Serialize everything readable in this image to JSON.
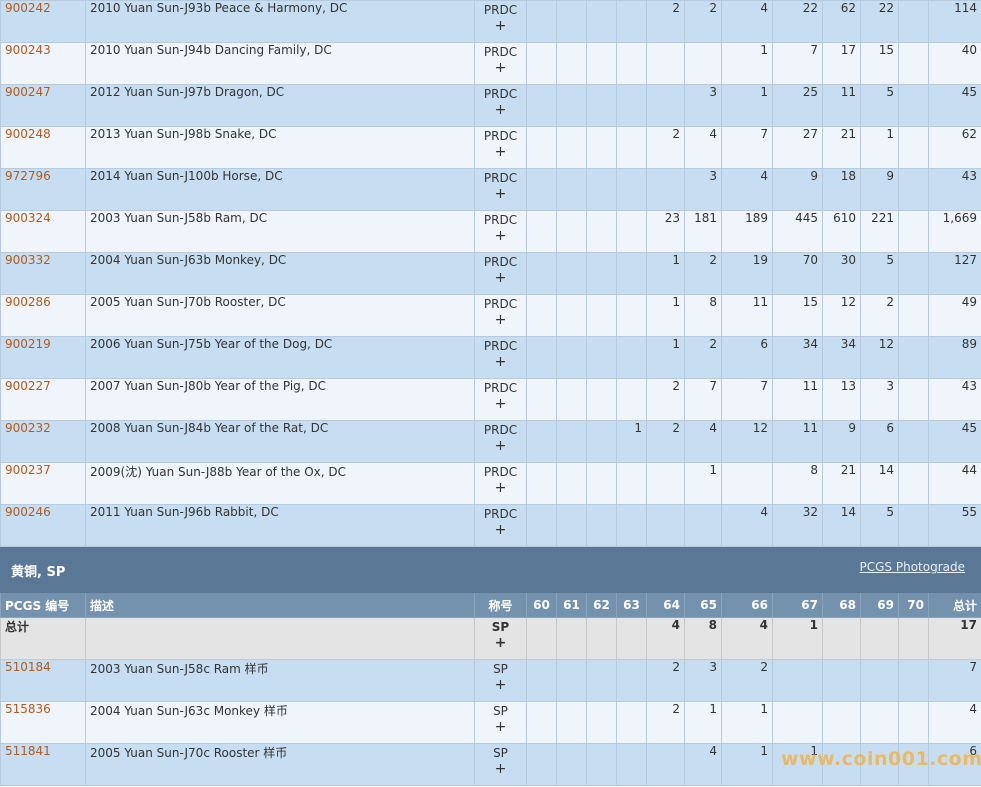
{
  "dc_rows": [
    {
      "pcgs": "900242",
      "desc": "2010 Yuan Sun-J93b Peace & Harmony, DC",
      "des": "PRDC",
      "g": [
        "",
        "",
        "",
        "",
        "2",
        "2",
        "4",
        "22",
        "62",
        "22",
        ""
      ],
      "total": "114"
    },
    {
      "pcgs": "900243",
      "desc": "2010 Yuan Sun-J94b Dancing Family, DC",
      "des": "PRDC",
      "g": [
        "",
        "",
        "",
        "",
        "",
        "",
        "1",
        "7",
        "17",
        "15",
        ""
      ],
      "total": "40"
    },
    {
      "pcgs": "900247",
      "desc": "2012 Yuan Sun-J97b Dragon, DC",
      "des": "PRDC",
      "g": [
        "",
        "",
        "",
        "",
        "",
        "3",
        "1",
        "25",
        "11",
        "5",
        ""
      ],
      "total": "45"
    },
    {
      "pcgs": "900248",
      "desc": "2013 Yuan Sun-J98b Snake, DC",
      "des": "PRDC",
      "g": [
        "",
        "",
        "",
        "",
        "2",
        "4",
        "7",
        "27",
        "21",
        "1",
        ""
      ],
      "total": "62"
    },
    {
      "pcgs": "972796",
      "desc": "2014 Yuan Sun-J100b Horse, DC",
      "des": "PRDC",
      "g": [
        "",
        "",
        "",
        "",
        "",
        "3",
        "4",
        "9",
        "18",
        "9",
        ""
      ],
      "total": "43"
    },
    {
      "pcgs": "900324",
      "desc": "2003 Yuan Sun-J58b Ram, DC",
      "des": "PRDC",
      "g": [
        "",
        "",
        "",
        "",
        "23",
        "181",
        "189",
        "445",
        "610",
        "221",
        ""
      ],
      "total": "1,669"
    },
    {
      "pcgs": "900332",
      "desc": "2004 Yuan Sun-J63b Monkey, DC",
      "des": "PRDC",
      "g": [
        "",
        "",
        "",
        "",
        "1",
        "2",
        "19",
        "70",
        "30",
        "5",
        ""
      ],
      "total": "127"
    },
    {
      "pcgs": "900286",
      "desc": "2005 Yuan Sun-J70b Rooster, DC",
      "des": "PRDC",
      "g": [
        "",
        "",
        "",
        "",
        "1",
        "8",
        "11",
        "15",
        "12",
        "2",
        ""
      ],
      "total": "49"
    },
    {
      "pcgs": "900219",
      "desc": "2006 Yuan Sun-J75b Year of the Dog, DC",
      "des": "PRDC",
      "g": [
        "",
        "",
        "",
        "",
        "1",
        "2",
        "6",
        "34",
        "34",
        "12",
        ""
      ],
      "total": "89"
    },
    {
      "pcgs": "900227",
      "desc": "2007 Yuan Sun-J80b Year of the Pig, DC",
      "des": "PRDC",
      "g": [
        "",
        "",
        "",
        "",
        "2",
        "7",
        "7",
        "11",
        "13",
        "3",
        ""
      ],
      "total": "43"
    },
    {
      "pcgs": "900232",
      "desc": "2008 Yuan Sun-J84b Year of the Rat, DC",
      "des": "PRDC",
      "g": [
        "",
        "",
        "",
        "1",
        "2",
        "4",
        "12",
        "11",
        "9",
        "6",
        ""
      ],
      "total": "45"
    },
    {
      "pcgs": "900237",
      "desc": "2009(沈) Yuan Sun-J88b Year of the Ox, DC",
      "des": "PRDC",
      "g": [
        "",
        "",
        "",
        "",
        "",
        "1",
        "",
        "8",
        "21",
        "14",
        ""
      ],
      "total": "44"
    },
    {
      "pcgs": "900246",
      "desc": "2011 Yuan Sun-J96b Rabbit, DC",
      "des": "PRDC",
      "g": [
        "",
        "",
        "",
        "",
        "",
        "",
        "4",
        "32",
        "14",
        "5",
        ""
      ],
      "total": "55"
    }
  ],
  "section": {
    "title": "黄铜, SP",
    "photograde": "PCGS Photograde"
  },
  "header": {
    "pcgs": "PCGS 编号",
    "desc": "描述",
    "des": "称号",
    "grades": [
      "60",
      "61",
      "62",
      "63",
      "64",
      "65",
      "66",
      "67",
      "68",
      "69",
      "70"
    ],
    "total": "总计"
  },
  "total_row": {
    "label": "总计",
    "des": "SP",
    "g": [
      "",
      "",
      "",
      "",
      "4",
      "8",
      "4",
      "1",
      "",
      "",
      ""
    ],
    "total": "17"
  },
  "sp_rows": [
    {
      "pcgs": "510184",
      "desc": "2003 Yuan Sun-J58c Ram 样币",
      "des": "SP",
      "g": [
        "",
        "",
        "",
        "",
        "2",
        "3",
        "2",
        "",
        "",
        "",
        ""
      ],
      "total": "7"
    },
    {
      "pcgs": "515836",
      "desc": "2004 Yuan Sun-J63c Monkey 样币",
      "des": "SP",
      "g": [
        "",
        "",
        "",
        "",
        "2",
        "1",
        "1",
        "",
        "",
        "",
        ""
      ],
      "total": "4"
    },
    {
      "pcgs": "511841",
      "desc": "2005 Yuan Sun-J70c Rooster 样币",
      "des": "SP",
      "g": [
        "",
        "",
        "",
        "",
        "",
        "4",
        "1",
        "1",
        "",
        "",
        ""
      ],
      "total": "6"
    }
  ],
  "plus_glyph": "+",
  "watermark": "www.coin001.com"
}
